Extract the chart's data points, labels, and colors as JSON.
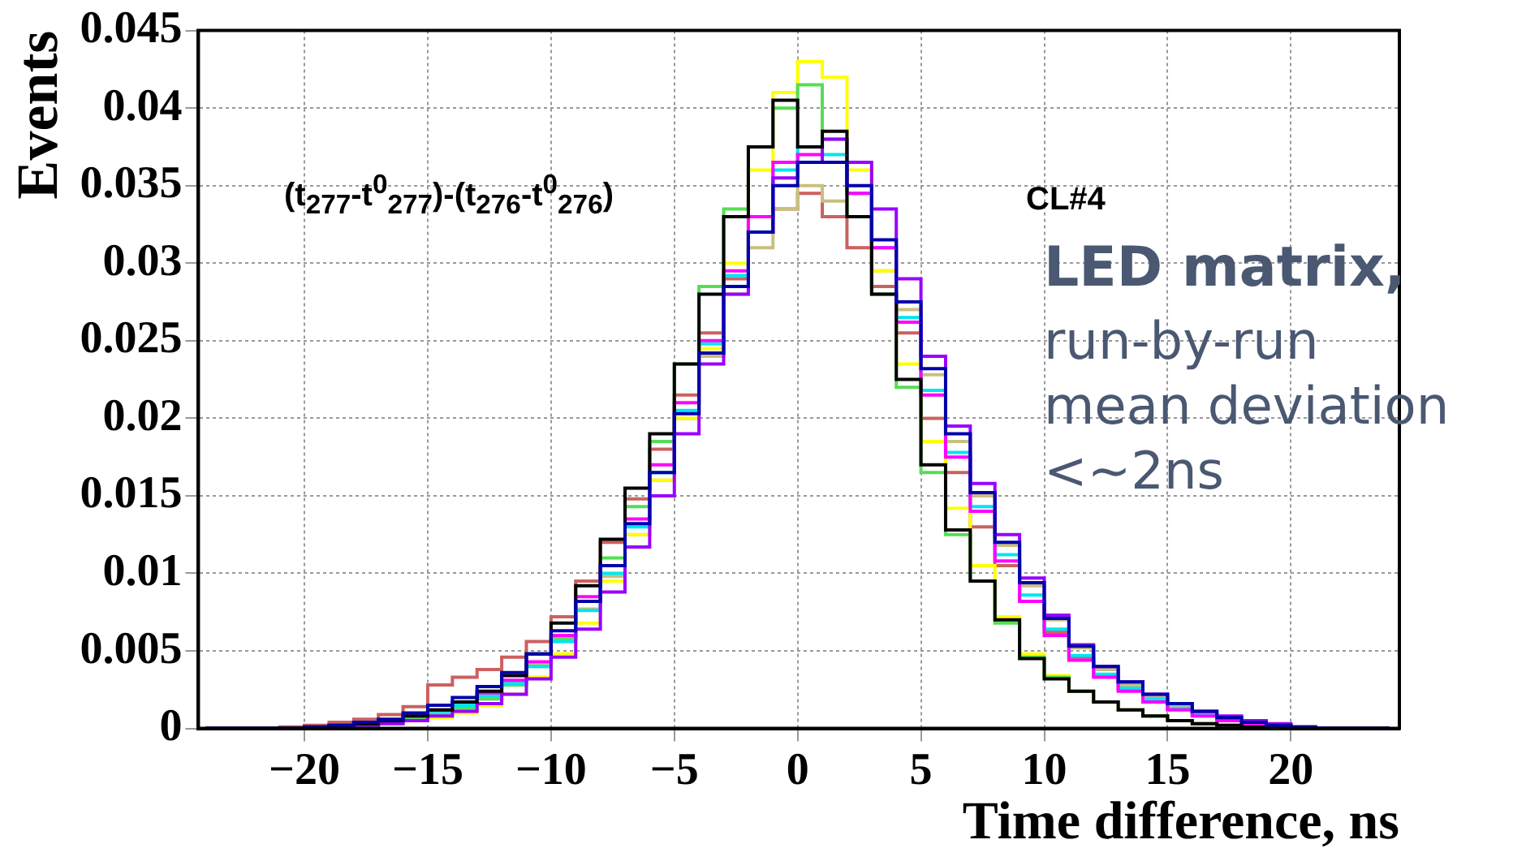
{
  "chart_data": {
    "type": "histogram",
    "xlabel": "Time difference, ns",
    "ylabel": "Events",
    "annotations": [
      "(t$_{277}$-t$^{0}$$_{277}$)-(t$_{276}$-t$^{0}$$_{276}$)",
      "CL#4",
      "LED matrix,",
      "run-by-run\nmean deviation\n<~2ns"
    ],
    "xlim": [
      -24.3,
      24.4
    ],
    "xticks": [
      {
        "value": -20,
        "label": "−20"
      },
      {
        "value": -15,
        "label": "−15"
      },
      {
        "value": -10,
        "label": "−10"
      },
      {
        "value": -5,
        "label": "−5"
      },
      0,
      5,
      10,
      15,
      20
    ],
    "ylim": [
      0,
      0.045
    ],
    "yticks": [
      0,
      0.005,
      0.01,
      0.015,
      0.02,
      0.025,
      0.03,
      0.035,
      0.04,
      0.045
    ],
    "grid": true,
    "line_style": "solid",
    "bins": [
      -24,
      -23,
      -22,
      -21,
      -20,
      -19,
      -18,
      -17,
      -16,
      -15,
      -14,
      -13,
      -12,
      -11,
      -10,
      -9,
      -8,
      -7,
      -6,
      -5,
      -4,
      -3,
      -2,
      -1,
      0,
      1,
      2,
      3,
      4,
      5,
      6,
      7,
      8,
      9,
      10,
      11,
      12,
      13,
      14,
      15,
      16,
      17,
      18,
      19,
      20,
      21,
      22,
      23,
      24
    ],
    "series": [
      {
        "color": "#cc6060",
        "values": [
          0,
          0,
          0,
          0.0001,
          0.0002,
          0.0004,
          0.0006,
          0.0009,
          0.0014,
          0.0028,
          0.0033,
          0.0038,
          0.0046,
          0.0056,
          0.0072,
          0.0095,
          0.012,
          0.0148,
          0.018,
          0.0215,
          0.0255,
          0.029,
          0.032,
          0.0335,
          0.0345,
          0.033,
          0.031,
          0.0285,
          0.0255,
          0.02,
          0.0165,
          0.013,
          0.0105,
          0.0082,
          0.0062,
          0.0046,
          0.0034,
          0.0025,
          0.0018,
          0.0013,
          0.0009,
          0.0006,
          0.0004,
          0.0002,
          0.0001,
          0,
          0,
          0
        ]
      },
      {
        "color": "#c8c080",
        "values": [
          0,
          0,
          0,
          0,
          0.0001,
          0.0002,
          0.0003,
          0.0005,
          0.0008,
          0.0011,
          0.0015,
          0.0021,
          0.0029,
          0.0041,
          0.0057,
          0.0077,
          0.0098,
          0.0125,
          0.016,
          0.02,
          0.024,
          0.028,
          0.031,
          0.0335,
          0.035,
          0.034,
          0.033,
          0.0295,
          0.027,
          0.0228,
          0.0185,
          0.015,
          0.0118,
          0.0092,
          0.007,
          0.0052,
          0.0038,
          0.0028,
          0.002,
          0.0015,
          0.001,
          0.0007,
          0.0004,
          0.0002,
          0,
          0,
          0,
          0
        ]
      },
      {
        "color": "#ffff00",
        "values": [
          0,
          0,
          0,
          0,
          0,
          0.0001,
          0.0002,
          0.0003,
          0.0005,
          0.0007,
          0.001,
          0.0015,
          0.0022,
          0.0033,
          0.0048,
          0.0068,
          0.0095,
          0.0125,
          0.016,
          0.02,
          0.0245,
          0.03,
          0.036,
          0.041,
          0.043,
          0.042,
          0.036,
          0.0295,
          0.0235,
          0.0185,
          0.0142,
          0.0105,
          0.0072,
          0.0048,
          0.0034,
          0.0024,
          0.0017,
          0.0012,
          0.0008,
          0.0005,
          0.0003,
          0.0002,
          0.0001,
          0,
          0,
          0,
          0,
          0
        ]
      },
      {
        "color": "#55dd55",
        "values": [
          0,
          0,
          0,
          0,
          0.0001,
          0.0001,
          0.0002,
          0.0004,
          0.0006,
          0.0009,
          0.0013,
          0.0019,
          0.0028,
          0.004,
          0.0058,
          0.0082,
          0.011,
          0.0143,
          0.0185,
          0.0235,
          0.0285,
          0.0335,
          0.0375,
          0.04,
          0.0415,
          0.038,
          0.033,
          0.028,
          0.022,
          0.0165,
          0.0125,
          0.0095,
          0.0068,
          0.0046,
          0.0033,
          0.0024,
          0.0017,
          0.0012,
          0.0008,
          0.0005,
          0.0003,
          0.0002,
          0.0001,
          0,
          0,
          0,
          0,
          0
        ]
      },
      {
        "color": "#00e5ee",
        "values": [
          0,
          0,
          0,
          0,
          0.0001,
          0.0002,
          0.0003,
          0.0005,
          0.0008,
          0.0011,
          0.0015,
          0.0021,
          0.0029,
          0.004,
          0.0056,
          0.0076,
          0.01,
          0.013,
          0.0165,
          0.0205,
          0.0248,
          0.0292,
          0.033,
          0.036,
          0.0375,
          0.037,
          0.0345,
          0.031,
          0.0265,
          0.0218,
          0.0178,
          0.0143,
          0.0112,
          0.0086,
          0.0064,
          0.0047,
          0.0035,
          0.0026,
          0.0019,
          0.0013,
          0.0009,
          0.0006,
          0.0004,
          0.0002,
          0,
          0,
          0,
          0
        ]
      },
      {
        "color": "#ff00ff",
        "values": [
          0,
          0,
          0,
          0,
          0.0001,
          0.0002,
          0.0003,
          0.0005,
          0.0008,
          0.0012,
          0.0017,
          0.0023,
          0.0031,
          0.0043,
          0.006,
          0.0085,
          0.0105,
          0.0135,
          0.017,
          0.021,
          0.025,
          0.0295,
          0.033,
          0.0365,
          0.037,
          0.0365,
          0.0345,
          0.031,
          0.0262,
          0.0215,
          0.0175,
          0.014,
          0.0108,
          0.0082,
          0.006,
          0.0044,
          0.0033,
          0.0024,
          0.0017,
          0.0012,
          0.0008,
          0.0005,
          0.0003,
          0.0002,
          0,
          0,
          0,
          0
        ]
      },
      {
        "color": "#9900ff",
        "values": [
          0,
          0,
          0,
          0,
          0,
          0.0001,
          0.0002,
          0.0003,
          0.0005,
          0.0008,
          0.0011,
          0.0016,
          0.0022,
          0.0032,
          0.0046,
          0.0064,
          0.0088,
          0.0117,
          0.015,
          0.019,
          0.0235,
          0.028,
          0.032,
          0.0355,
          0.0365,
          0.038,
          0.0365,
          0.0335,
          0.029,
          0.024,
          0.0195,
          0.0158,
          0.0125,
          0.0097,
          0.0073,
          0.0054,
          0.004,
          0.003,
          0.0022,
          0.0016,
          0.0011,
          0.0008,
          0.0005,
          0.0003,
          0.0001,
          0,
          0,
          0
        ]
      },
      {
        "color": "#000000",
        "values": [
          0,
          0,
          0,
          0,
          0.0001,
          0.0002,
          0.0003,
          0.0005,
          0.0008,
          0.0012,
          0.0017,
          0.0024,
          0.0034,
          0.0048,
          0.0068,
          0.0092,
          0.0122,
          0.0155,
          0.019,
          0.0235,
          0.028,
          0.033,
          0.0375,
          0.0405,
          0.0375,
          0.0385,
          0.033,
          0.028,
          0.0225,
          0.017,
          0.0128,
          0.0095,
          0.007,
          0.0045,
          0.0032,
          0.0024,
          0.0017,
          0.0012,
          0.0008,
          0.0005,
          0.0003,
          0.0002,
          0.0001,
          0,
          0,
          0,
          0,
          0
        ]
      },
      {
        "color": "#0000aa",
        "values": [
          0,
          0,
          0,
          0,
          0.0001,
          0.0002,
          0.0004,
          0.0006,
          0.001,
          0.0015,
          0.002,
          0.0027,
          0.0036,
          0.0048,
          0.0063,
          0.0082,
          0.0105,
          0.0132,
          0.0165,
          0.0203,
          0.0242,
          0.0285,
          0.032,
          0.035,
          0.0365,
          0.0365,
          0.035,
          0.0315,
          0.0275,
          0.0232,
          0.019,
          0.0152,
          0.012,
          0.0094,
          0.0071,
          0.0053,
          0.004,
          0.003,
          0.0022,
          0.0016,
          0.0011,
          0.0007,
          0.0004,
          0.0002,
          0.0001,
          0,
          0,
          0
        ]
      }
    ]
  }
}
